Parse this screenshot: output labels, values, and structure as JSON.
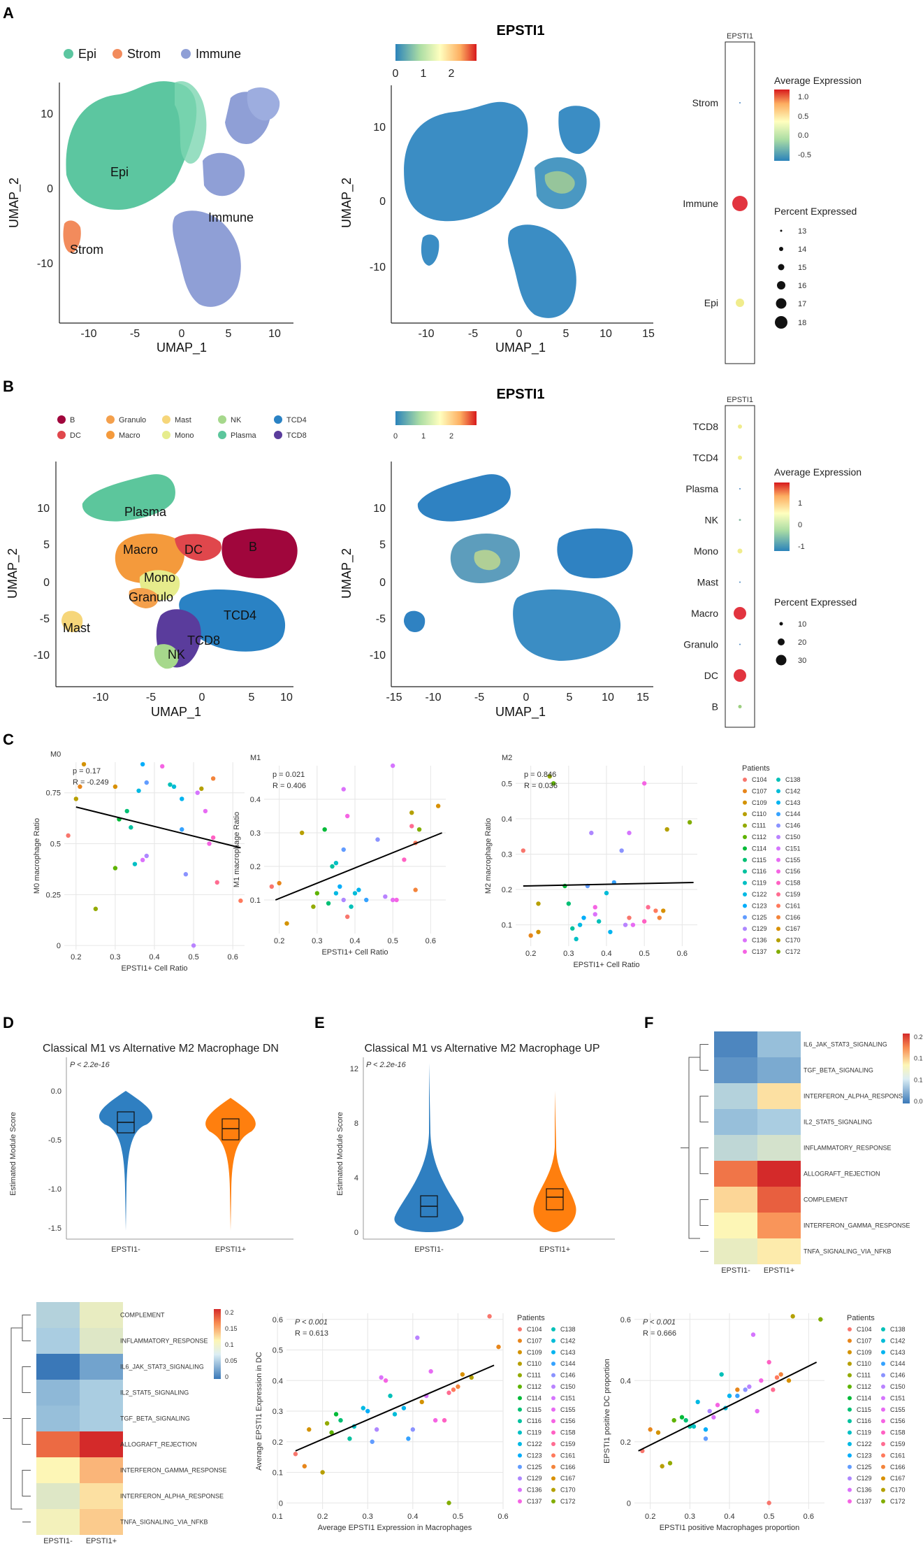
{
  "panels": {
    "A": "A",
    "B": "B",
    "C": "C",
    "D": "D",
    "E": "E",
    "F": "F"
  },
  "panelA": {
    "legend": [
      "Epi",
      "Strom",
      "Immune"
    ],
    "legend_colors": [
      "#5cc6a0",
      "#f28b5c",
      "#8f9fd6"
    ],
    "cluster_labels": [
      "Epi",
      "Immune",
      "Strom"
    ],
    "feature_title": "EPSTI1",
    "colorbar_ticks": [
      "0",
      "1",
      "2"
    ],
    "umap1": "UMAP_1",
    "umap2": "UMAP_2",
    "xticks_left": [
      "-10",
      "-5",
      "0",
      "5",
      "10"
    ],
    "yticks_left": [
      "10",
      "0",
      "-10"
    ],
    "xticks_right": [
      "-10",
      "-5",
      "0",
      "5",
      "10",
      "15"
    ],
    "yticks_right": [
      "10",
      "0",
      "-10"
    ],
    "dot_header": "EPSTI1",
    "dot_rows": [
      "Strom",
      "Immune",
      "Epi"
    ],
    "avg_expr_title": "Average Expression",
    "avg_expr_ticks": [
      "1.0",
      "0.5",
      "0.0",
      "-0.5"
    ],
    "pct_title": "Percent Expressed",
    "pct_values": [
      "13",
      "14",
      "15",
      "16",
      "17",
      "18"
    ]
  },
  "panelB": {
    "legend": [
      "B",
      "DC",
      "Granulo",
      "Macro",
      "Mast",
      "Mono",
      "NK",
      "Plasma",
      "TCD4",
      "TCD8"
    ],
    "legend_colors": [
      "#a0063c",
      "#e0474c",
      "#f4a04c",
      "#f49a3c",
      "#f6d67a",
      "#e6ec8c",
      "#a6d88c",
      "#5cc69c",
      "#2a82c4",
      "#5a3c9c"
    ],
    "cluster_labels": [
      "Plasma",
      "Macro",
      "DC",
      "B",
      "Mono",
      "Granulo",
      "Mast",
      "TCD4",
      "TCD8",
      "NK"
    ],
    "feature_title": "EPSTI1",
    "colorbar_ticks": [
      "0",
      "1",
      "2"
    ],
    "umap1": "UMAP_1",
    "umap2": "UMAP_2",
    "xticks_left": [
      "-10",
      "-5",
      "0",
      "5",
      "10"
    ],
    "yticks_left": [
      "10",
      "5",
      "0",
      "-5",
      "-10"
    ],
    "xticks_right": [
      "-15",
      "-10",
      "-5",
      "0",
      "5",
      "10",
      "15"
    ],
    "yticks_right": [
      "10",
      "5",
      "0",
      "-5",
      "-10"
    ],
    "dot_header": "EPSTI1",
    "dot_rows": [
      "TCD8",
      "TCD4",
      "Plasma",
      "NK",
      "Mono",
      "Mast",
      "Macro",
      "Granulo",
      "DC",
      "B"
    ],
    "avg_expr_title": "Average Expression",
    "avg_expr_ticks": [
      "1",
      "0",
      "-1"
    ],
    "pct_title": "Percent Expressed",
    "pct_values": [
      "10",
      "20",
      "30"
    ]
  },
  "panelC": {
    "xlabel": "EPSTI1+ Cell Ratio",
    "legend_title": "Patients",
    "patients_col1": [
      "C104",
      "C107",
      "C109",
      "C110",
      "C111",
      "C112",
      "C114",
      "C115",
      "C116",
      "C119",
      "C122",
      "C123",
      "C125",
      "C129",
      "C136",
      "C137"
    ],
    "patients_col2": [
      "C138",
      "C142",
      "C143",
      "C144",
      "C146",
      "C150",
      "C151",
      "C155",
      "C156",
      "C158",
      "C159",
      "C161",
      "C166",
      "C167",
      "C170",
      "C172"
    ],
    "patient_colors_col1": [
      "#f8766d",
      "#e7861b",
      "#d39200",
      "#b79f00",
      "#93aa00",
      "#5eb300",
      "#00ba38",
      "#00bf74",
      "#00c19f",
      "#00bfc4",
      "#00b9e3",
      "#00adfa",
      "#619cff",
      "#ae87ff",
      "#db72fb",
      "#f564e3"
    ],
    "patient_colors_col2": [
      "#00c0b8",
      "#00bcd8",
      "#00b4f0",
      "#35a2ff",
      "#8b93ff",
      "#b983ff",
      "#d575fe",
      "#e76bf3",
      "#f564e3",
      "#ff61c3",
      "#ff6c91",
      "#ff7a5d",
      "#f3843b",
      "#d89000",
      "#b4a000",
      "#82ad00"
    ]
  },
  "panelD": {
    "title": "Classical M1 vs Alternative M2 Macrophage DN",
    "pvalue": "P < 2.2e-16",
    "ylabel": "Estimated Module Score",
    "yticks": [
      "0.0",
      "-0.5",
      "-1.0",
      "-1.5"
    ],
    "groups": [
      "EPSTI1-",
      "EPSTI1+"
    ]
  },
  "panelE": {
    "title": "Classical M1 vs Alternative M2 Macrophage UP",
    "pvalue": "P < 2.2e-16",
    "ylabel": "Estimated Module Score",
    "yticks": [
      "12",
      "8",
      "4",
      "0"
    ],
    "groups": [
      "EPSTI1-",
      "EPSTI1+"
    ]
  },
  "panelF": {
    "rows": [
      "IL6_JAK_STAT3_SIGNALING",
      "TGF_BETA_SIGNALING",
      "INTERFERON_ALPHA_RESPONSE",
      "IL2_STAT5_SIGNALING",
      "INFLAMMATORY_RESPONSE",
      "ALLOGRAFT_REJECTION",
      "COMPLEMENT",
      "INTERFERON_GAMMA_RESPONSE",
      "TNFA_SIGNALING_VIA_NFKB"
    ],
    "cols": [
      "EPSTI1-",
      "EPSTI1+"
    ],
    "values": [
      [
        0.03,
        0.07
      ],
      [
        0.04,
        0.055
      ],
      [
        0.085,
        0.13
      ],
      [
        0.07,
        0.08
      ],
      [
        0.09,
        0.1
      ],
      [
        0.18,
        0.215
      ],
      [
        0.135,
        0.19
      ],
      [
        0.12,
        0.165
      ],
      [
        0.11,
        0.125
      ]
    ],
    "scale_ticks": [
      "0.2",
      "0.15",
      "0.1",
      "0.05"
    ]
  },
  "panelG": {
    "rows": [
      "COMPLEMENT",
      "INFLAMMATORY_RESPONSE",
      "IL6_JAK_STAT3_SIGNALING",
      "IL2_STAT5_SIGNALING",
      "TGF_BETA_SIGNALING",
      "ALLOGRAFT_REJECTION",
      "INTERFERON_GAMMA_RESPONSE",
      "INTERFERON_ALPHA_RESPONSE",
      "TNFA_SIGNALING_VIA_NFKB"
    ],
    "cols": [
      "EPSTI1-",
      "EPSTI1+"
    ],
    "values": [
      [
        0.085,
        0.11
      ],
      [
        0.08,
        0.105
      ],
      [
        0.02,
        0.05
      ],
      [
        0.065,
        0.08
      ],
      [
        0.07,
        0.08
      ],
      [
        0.185,
        0.215
      ],
      [
        0.12,
        0.15
      ],
      [
        0.105,
        0.13
      ],
      [
        0.115,
        0.14
      ]
    ],
    "scale_ticks": [
      "0.2",
      "0.15",
      "0.1",
      "0.05",
      "0"
    ]
  },
  "chart_data": [
    {
      "type": "scatter",
      "title": "M0",
      "stat_p": "p = 0.17",
      "stat_r": "R = -0.249",
      "xlabel": "EPSTI1+ Cell Ratio",
      "ylabel": "M0 macrophage Ratio",
      "xlim": [
        0.17,
        0.63
      ],
      "ylim": [
        -0.02,
        0.9
      ],
      "xticks": [
        0.2,
        0.3,
        0.4,
        0.5,
        0.6
      ],
      "yticks": [
        0.0,
        0.25,
        0.5,
        0.75
      ],
      "fit": [
        [
          0.2,
          0.68
        ],
        [
          0.62,
          0.48
        ]
      ],
      "points": [
        [
          0.18,
          0.54
        ],
        [
          0.21,
          0.78
        ],
        [
          0.22,
          0.89
        ],
        [
          0.2,
          0.72
        ],
        [
          0.25,
          0.18
        ],
        [
          0.3,
          0.38
        ],
        [
          0.31,
          0.62
        ],
        [
          0.33,
          0.66
        ],
        [
          0.34,
          0.58
        ],
        [
          0.35,
          0.4
        ],
        [
          0.36,
          0.76
        ],
        [
          0.37,
          0.89
        ],
        [
          0.38,
          0.8
        ],
        [
          0.38,
          0.44
        ],
        [
          0.37,
          0.42
        ],
        [
          0.42,
          0.88
        ],
        [
          0.44,
          0.79
        ],
        [
          0.45,
          0.78
        ],
        [
          0.47,
          0.72
        ],
        [
          0.47,
          0.57
        ],
        [
          0.48,
          0.35
        ],
        [
          0.5,
          0.0
        ],
        [
          0.51,
          0.75
        ],
        [
          0.53,
          0.66
        ],
        [
          0.54,
          0.5
        ],
        [
          0.55,
          0.53
        ],
        [
          0.56,
          0.31
        ],
        [
          0.62,
          0.22
        ],
        [
          0.55,
          0.82
        ],
        [
          0.3,
          0.78
        ],
        [
          0.52,
          0.77
        ]
      ]
    },
    {
      "type": "scatter",
      "title": "M1",
      "stat_p": "p = 0.021",
      "stat_r": "R = 0.406",
      "xlabel": "EPSTI1+ Cell Ratio",
      "ylabel": "M1 macrophage Ratio",
      "xlim": [
        0.16,
        0.64
      ],
      "ylim": [
        0.0,
        0.5
      ],
      "xticks": [
        0.2,
        0.3,
        0.4,
        0.5,
        0.6
      ],
      "yticks": [
        0.1,
        0.2,
        0.3,
        0.4
      ],
      "fit": [
        [
          0.19,
          0.1
        ],
        [
          0.63,
          0.3
        ]
      ],
      "points": [
        [
          0.18,
          0.14
        ],
        [
          0.2,
          0.15
        ],
        [
          0.22,
          0.03
        ],
        [
          0.26,
          0.3
        ],
        [
          0.29,
          0.08
        ],
        [
          0.3,
          0.12
        ],
        [
          0.32,
          0.31
        ],
        [
          0.33,
          0.09
        ],
        [
          0.34,
          0.2
        ],
        [
          0.35,
          0.21
        ],
        [
          0.35,
          0.12
        ],
        [
          0.36,
          0.14
        ],
        [
          0.37,
          0.25
        ],
        [
          0.37,
          0.1
        ],
        [
          0.37,
          0.43
        ],
        [
          0.38,
          0.35
        ],
        [
          0.39,
          0.08
        ],
        [
          0.4,
          0.12
        ],
        [
          0.41,
          0.13
        ],
        [
          0.43,
          0.1
        ],
        [
          0.46,
          0.28
        ],
        [
          0.48,
          0.11
        ],
        [
          0.5,
          0.5
        ],
        [
          0.5,
          0.1
        ],
        [
          0.51,
          0.1
        ],
        [
          0.53,
          0.22
        ],
        [
          0.55,
          0.32
        ],
        [
          0.56,
          0.27
        ],
        [
          0.56,
          0.13
        ],
        [
          0.62,
          0.38
        ],
        [
          0.55,
          0.36
        ],
        [
          0.57,
          0.31
        ],
        [
          0.38,
          0.05
        ]
      ]
    },
    {
      "type": "scatter",
      "title": "M2",
      "stat_p": "p = 0.846",
      "stat_r": "R = 0.036",
      "xlabel": "EPSTI1+ Cell Ratio",
      "ylabel": "M2 macrophage Ratio",
      "xlim": [
        0.16,
        0.64
      ],
      "ylim": [
        0.04,
        0.55
      ],
      "xticks": [
        0.2,
        0.3,
        0.4,
        0.5,
        0.6
      ],
      "yticks": [
        0.1,
        0.2,
        0.3,
        0.4,
        0.5
      ],
      "fit": [
        [
          0.18,
          0.21
        ],
        [
          0.63,
          0.22
        ]
      ],
      "points": [
        [
          0.18,
          0.31
        ],
        [
          0.2,
          0.07
        ],
        [
          0.22,
          0.08
        ],
        [
          0.22,
          0.16
        ],
        [
          0.25,
          0.52
        ],
        [
          0.26,
          0.5
        ],
        [
          0.29,
          0.21
        ],
        [
          0.3,
          0.16
        ],
        [
          0.31,
          0.09
        ],
        [
          0.32,
          0.06
        ],
        [
          0.33,
          0.1
        ],
        [
          0.34,
          0.12
        ],
        [
          0.35,
          0.21
        ],
        [
          0.36,
          0.36
        ],
        [
          0.37,
          0.13
        ],
        [
          0.37,
          0.15
        ],
        [
          0.38,
          0.11
        ],
        [
          0.4,
          0.19
        ],
        [
          0.41,
          0.08
        ],
        [
          0.42,
          0.22
        ],
        [
          0.44,
          0.31
        ],
        [
          0.45,
          0.1
        ],
        [
          0.46,
          0.36
        ],
        [
          0.47,
          0.1
        ],
        [
          0.5,
          0.5
        ],
        [
          0.5,
          0.11
        ],
        [
          0.51,
          0.15
        ],
        [
          0.53,
          0.14
        ],
        [
          0.54,
          0.12
        ],
        [
          0.55,
          0.14
        ],
        [
          0.56,
          0.37
        ],
        [
          0.62,
          0.39
        ],
        [
          0.46,
          0.12
        ]
      ]
    },
    {
      "type": "scatter",
      "title": "",
      "stat_p": "P < 0.001",
      "stat_r": "R = 0.613",
      "xlabel": "Average EPSTI1 Expression in Macrophages",
      "ylabel": "Average EPSTI1 Expression in DC",
      "xlim": [
        0.12,
        0.6
      ],
      "ylim": [
        -0.02,
        0.62
      ],
      "xticks": [
        0.1,
        0.2,
        0.3,
        0.4,
        0.5,
        0.6
      ],
      "yticks": [
        0.0,
        0.1,
        0.2,
        0.3,
        0.4,
        0.5,
        0.6
      ],
      "fit": [
        [
          0.14,
          0.17
        ],
        [
          0.58,
          0.45
        ]
      ],
      "points": [
        [
          0.14,
          0.16
        ],
        [
          0.16,
          0.12
        ],
        [
          0.17,
          0.24
        ],
        [
          0.2,
          0.1
        ],
        [
          0.21,
          0.26
        ],
        [
          0.22,
          0.23
        ],
        [
          0.23,
          0.29
        ],
        [
          0.24,
          0.27
        ],
        [
          0.26,
          0.21
        ],
        [
          0.27,
          0.25
        ],
        [
          0.29,
          0.31
        ],
        [
          0.3,
          0.3
        ],
        [
          0.31,
          0.2
        ],
        [
          0.32,
          0.24
        ],
        [
          0.33,
          0.41
        ],
        [
          0.34,
          0.4
        ],
        [
          0.35,
          0.35
        ],
        [
          0.36,
          0.29
        ],
        [
          0.38,
          0.31
        ],
        [
          0.39,
          0.21
        ],
        [
          0.4,
          0.24
        ],
        [
          0.41,
          0.54
        ],
        [
          0.43,
          0.35
        ],
        [
          0.44,
          0.43
        ],
        [
          0.45,
          0.27
        ],
        [
          0.47,
          0.27
        ],
        [
          0.48,
          0.36
        ],
        [
          0.49,
          0.37
        ],
        [
          0.5,
          0.38
        ],
        [
          0.51,
          0.42
        ],
        [
          0.53,
          0.41
        ],
        [
          0.48,
          0.0
        ],
        [
          0.57,
          0.61
        ],
        [
          0.59,
          0.51
        ],
        [
          0.42,
          0.33
        ]
      ]
    },
    {
      "type": "scatter",
      "title": "",
      "stat_p": "P < 0.001",
      "stat_r": "R = 0.666",
      "xlabel": "EPSTI1 positive Macrophages proportion",
      "ylabel": "EPSTI1 positive DC proportion",
      "xlim": [
        0.16,
        0.64
      ],
      "ylim": [
        -0.02,
        0.62
      ],
      "xticks": [
        0.2,
        0.3,
        0.4,
        0.5,
        0.6
      ],
      "yticks": [
        0.0,
        0.2,
        0.4,
        0.6
      ],
      "fit": [
        [
          0.17,
          0.17
        ],
        [
          0.62,
          0.46
        ]
      ],
      "points": [
        [
          0.18,
          0.17
        ],
        [
          0.2,
          0.24
        ],
        [
          0.22,
          0.23
        ],
        [
          0.23,
          0.12
        ],
        [
          0.25,
          0.13
        ],
        [
          0.26,
          0.27
        ],
        [
          0.28,
          0.28
        ],
        [
          0.29,
          0.27
        ],
        [
          0.3,
          0.25
        ],
        [
          0.31,
          0.25
        ],
        [
          0.32,
          0.33
        ],
        [
          0.34,
          0.24
        ],
        [
          0.34,
          0.21
        ],
        [
          0.35,
          0.3
        ],
        [
          0.36,
          0.28
        ],
        [
          0.37,
          0.32
        ],
        [
          0.38,
          0.42
        ],
        [
          0.39,
          0.31
        ],
        [
          0.4,
          0.35
        ],
        [
          0.42,
          0.35
        ],
        [
          0.44,
          0.37
        ],
        [
          0.45,
          0.38
        ],
        [
          0.46,
          0.55
        ],
        [
          0.47,
          0.3
        ],
        [
          0.48,
          0.4
        ],
        [
          0.5,
          0.46
        ],
        [
          0.51,
          0.37
        ],
        [
          0.52,
          0.41
        ],
        [
          0.53,
          0.42
        ],
        [
          0.55,
          0.4
        ],
        [
          0.56,
          0.61
        ],
        [
          0.63,
          0.6
        ],
        [
          0.5,
          0.0
        ],
        [
          0.42,
          0.37
        ]
      ]
    }
  ],
  "bottom_scatter_legend_title": "Patients"
}
